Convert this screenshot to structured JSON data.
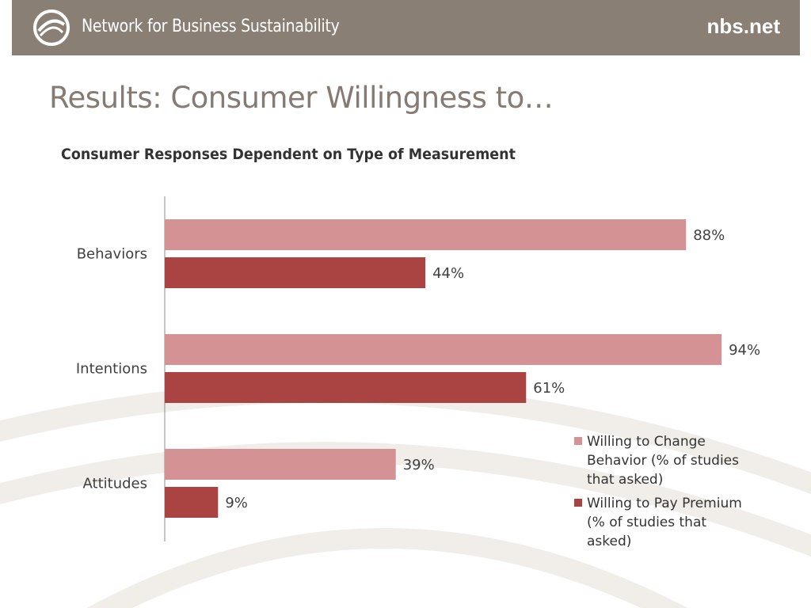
{
  "header": {
    "org_name": "Network for Business Sustainability",
    "site_url": "nbs.net",
    "logo_icon": "swirl-circle-logo-icon",
    "background_color": "#8a7f75"
  },
  "slide": {
    "title": "Results: Consumer Willingness to…"
  },
  "chart_data": {
    "type": "bar",
    "orientation": "horizontal",
    "title": "Consumer Responses Dependent on Type of Measurement",
    "categories": [
      "Behaviors",
      "Intentions",
      "Attitudes"
    ],
    "series": [
      {
        "name": "Willing to Change Behavior (% of studies that asked)",
        "values": [
          88,
          94,
          39
        ],
        "labels": [
          "88%",
          "94%",
          "39%"
        ],
        "color": "#d49294"
      },
      {
        "name": "Willing to Pay Premium (% of studies that asked)",
        "values": [
          44,
          61,
          9
        ],
        "labels": [
          "44%",
          "61%",
          "9%"
        ],
        "color": "#a94442"
      }
    ],
    "xlim": [
      0,
      100
    ],
    "xlabel": "",
    "ylabel": "",
    "grid": false,
    "legend_position": "bottom-right"
  }
}
